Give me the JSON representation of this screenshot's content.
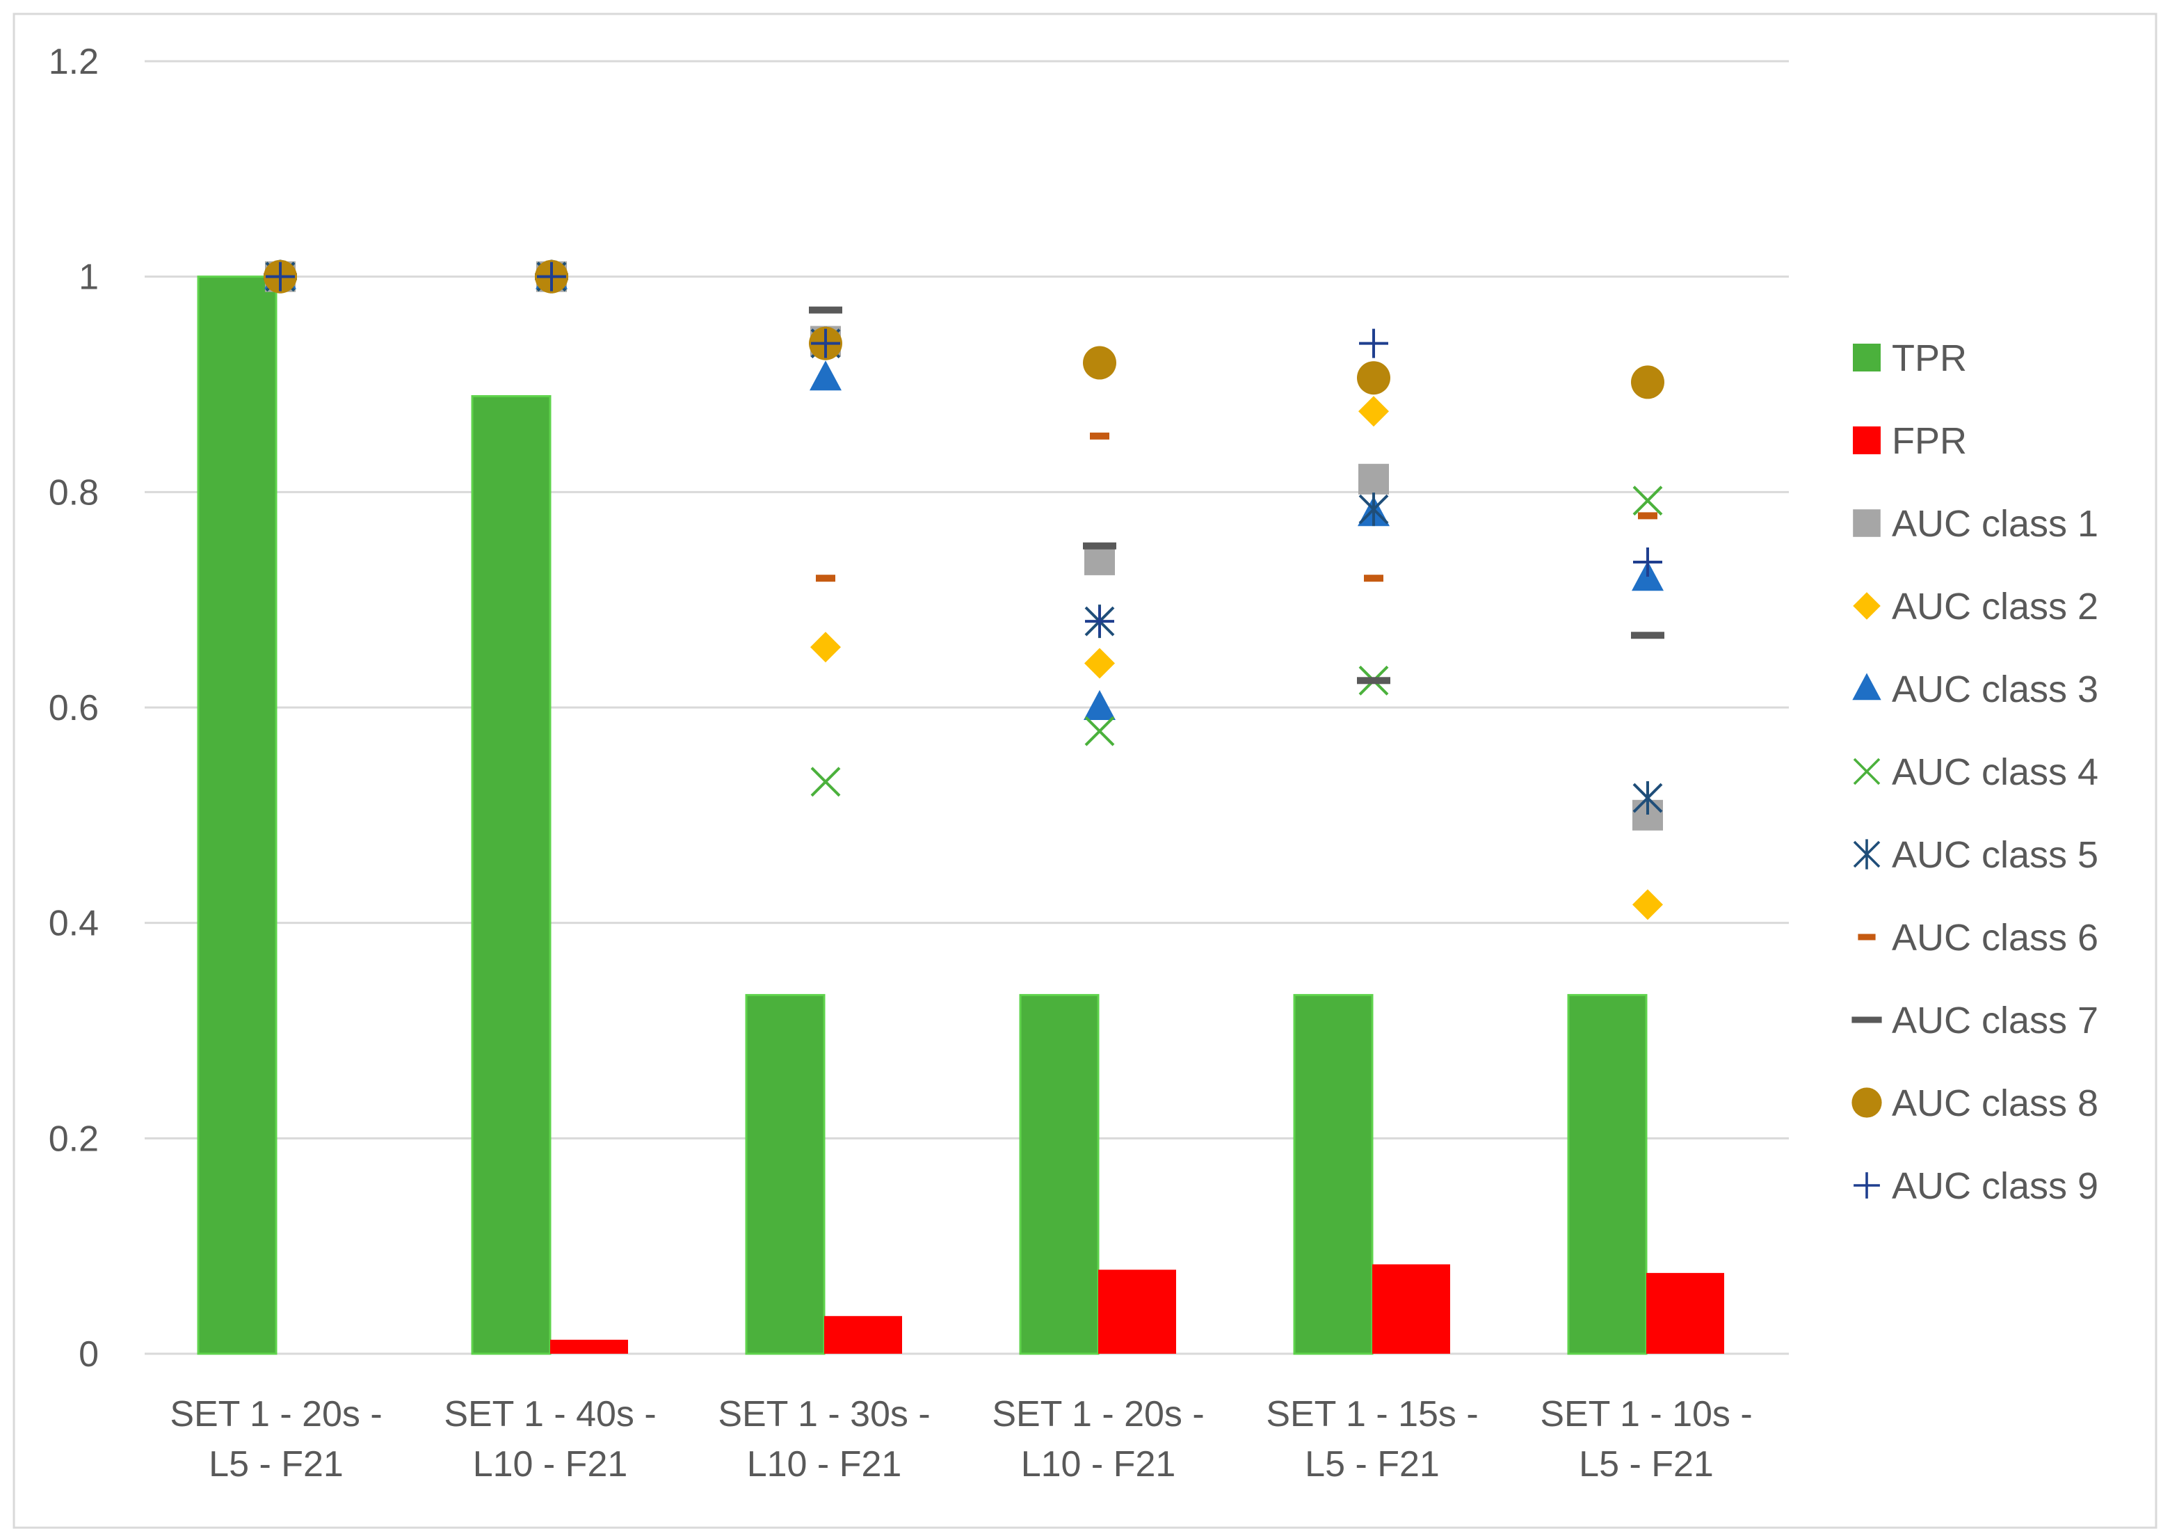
{
  "chart_data": {
    "type": "bar",
    "title": "",
    "xlabel": "",
    "ylabel": "",
    "ylim": [
      0,
      1.2
    ],
    "yticks": [
      "0",
      "0.2",
      "0.4",
      "0.6",
      "0.8",
      "1",
      "1.2"
    ],
    "categories": [
      [
        "SET 1 - 20s -",
        "L5 - F21"
      ],
      [
        "SET 1 - 40s -",
        "L10 - F21"
      ],
      [
        "SET 1 - 30s -",
        "L10 - F21"
      ],
      [
        "SET 1 - 20s -",
        "L10 - F21"
      ],
      [
        "SET 1 - 15s -",
        "L5 - F21"
      ],
      [
        "SET 1 - 10s -",
        "L5 - F21"
      ]
    ],
    "bars": [
      {
        "name": "TPR",
        "color": "#4bb13c",
        "values": [
          1.0,
          0.889,
          0.333,
          0.333,
          0.333,
          0.333
        ]
      },
      {
        "name": "FPR",
        "color": "#ff0000",
        "values": [
          0.0,
          0.013,
          0.035,
          0.078,
          0.083,
          0.075
        ]
      }
    ],
    "markers": [
      {
        "name": "AUC class 1",
        "color": "#a6a6a6",
        "marker": "square",
        "values": [
          1.0,
          1.0,
          0.94,
          0.737,
          0.812,
          0.5
        ]
      },
      {
        "name": "AUC class 2",
        "color": "#ffc000",
        "marker": "diamond",
        "values": [
          1.0,
          1.0,
          0.656,
          0.641,
          0.875,
          0.417
        ]
      },
      {
        "name": "AUC class 3",
        "color": "#1f6fc5",
        "marker": "triangle",
        "values": [
          1.0,
          1.0,
          0.906,
          0.6,
          0.78,
          0.72
        ]
      },
      {
        "name": "AUC class 4",
        "color": "#4bb13c",
        "marker": "x",
        "values": [
          1.0,
          1.0,
          0.531,
          0.578,
          0.625,
          0.792
        ]
      },
      {
        "name": "AUC class 5",
        "color": "#1f4e79",
        "marker": "star",
        "values": [
          1.0,
          1.0,
          0.938,
          0.68,
          0.784,
          0.516
        ]
      },
      {
        "name": "AUC class 6",
        "color": "#c55a11",
        "marker": "dash",
        "values": [
          1.0,
          1.0,
          0.72,
          0.852,
          0.72,
          0.778
        ]
      },
      {
        "name": "AUC class 7",
        "color": "#595959",
        "marker": "dash-wide",
        "values": [
          1.0,
          1.0,
          0.969,
          0.75,
          0.625,
          0.667
        ]
      },
      {
        "name": "AUC class 8",
        "color": "#b8860b",
        "marker": "circle",
        "values": [
          1.0,
          1.0,
          0.938,
          0.92,
          0.906,
          0.902
        ]
      },
      {
        "name": "AUC class 9",
        "color": "#1f3f8f",
        "marker": "plus",
        "values": [
          1.0,
          1.0,
          0.938,
          0.68,
          0.938,
          0.735
        ]
      }
    ],
    "grid": true,
    "legend": "right"
  }
}
